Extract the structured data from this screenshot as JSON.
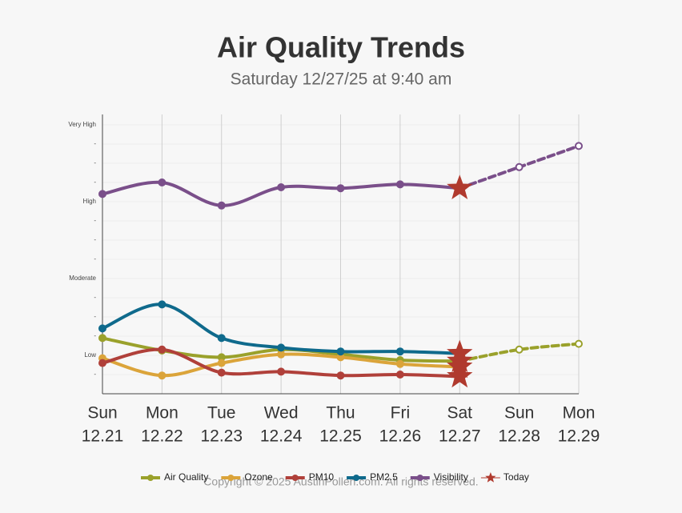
{
  "chart_data": {
    "type": "line",
    "title": "Air Quality Trends",
    "subtitle": "Saturday 12/27/25 at 9:40 am",
    "categories": [
      "Sun",
      "Mon",
      "Tue",
      "Wed",
      "Thu",
      "Fri",
      "Sat",
      "Sun",
      "Mon"
    ],
    "dates": [
      "12.21",
      "12.22",
      "12.23",
      "12.24",
      "12.25",
      "12.26",
      "12.27",
      "12.28",
      "12.29"
    ],
    "ylim": [
      0,
      14.5
    ],
    "yticks": [
      {
        "value": 1,
        "label": "-"
      },
      {
        "value": 2,
        "label": "Low"
      },
      {
        "value": 3,
        "label": "-"
      },
      {
        "value": 4,
        "label": "-"
      },
      {
        "value": 5,
        "label": "-"
      },
      {
        "value": 6,
        "label": "Moderate"
      },
      {
        "value": 7,
        "label": "-"
      },
      {
        "value": 8,
        "label": "-"
      },
      {
        "value": 9,
        "label": "-"
      },
      {
        "value": 10,
        "label": "High"
      },
      {
        "value": 11,
        "label": "-"
      },
      {
        "value": 12,
        "label": "-"
      },
      {
        "value": 13,
        "label": "-"
      },
      {
        "value": 14,
        "label": "Very High"
      }
    ],
    "grid": true,
    "series": [
      {
        "name": "Air Quality",
        "color": "#9aa12b",
        "values": [
          2.9,
          2.25,
          1.9,
          2.3,
          2.05,
          1.75,
          1.7,
          2.3,
          2.6
        ]
      },
      {
        "name": "Ozone",
        "color": "#dba43a",
        "values": [
          1.85,
          0.95,
          1.6,
          2.05,
          1.9,
          1.55,
          1.4,
          null,
          null
        ]
      },
      {
        "name": "PM10",
        "color": "#b0403a",
        "values": [
          1.6,
          2.3,
          1.1,
          1.15,
          0.95,
          1.0,
          0.9,
          null,
          null
        ]
      },
      {
        "name": "PM2.5",
        "color": "#0f6a8c",
        "values": [
          3.4,
          4.65,
          2.9,
          2.4,
          2.2,
          2.2,
          2.1,
          null,
          null
        ]
      },
      {
        "name": "Visibility",
        "color": "#7a4f8a",
        "values": [
          10.4,
          11.0,
          9.8,
          10.75,
          10.7,
          10.9,
          10.7,
          11.8,
          12.9
        ]
      }
    ],
    "today": {
      "name": "Today",
      "color": "#b03a2e",
      "date": "12.27"
    },
    "footer": "Copyright © 2025 AustinPollen.com.  All rights reserved."
  }
}
